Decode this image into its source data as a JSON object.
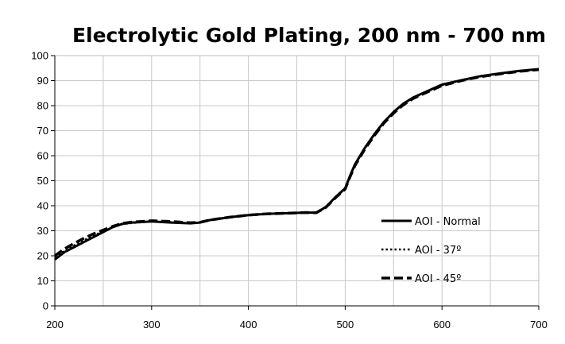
{
  "chart_data": {
    "type": "line",
    "title": "Electrolytic Gold Plating, 200 nm - 700 nm",
    "xlabel": "",
    "ylabel": "",
    "xlim": [
      200,
      700
    ],
    "ylim": [
      0,
      100
    ],
    "xticks": [
      200,
      300,
      400,
      500,
      600,
      700
    ],
    "yticks": [
      0,
      10,
      20,
      30,
      40,
      50,
      60,
      70,
      80,
      90,
      100
    ],
    "grid": true,
    "legend_position": "right",
    "series": [
      {
        "name": "AOI - Normal",
        "style": "solid",
        "color": "#000000",
        "x": [
          200,
          210,
          220,
          230,
          240,
          250,
          260,
          270,
          280,
          300,
          320,
          340,
          350,
          360,
          380,
          400,
          420,
          440,
          460,
          470,
          480,
          490,
          500,
          505,
          510,
          520,
          530,
          540,
          550,
          560,
          570,
          580,
          600,
          620,
          640,
          660,
          680,
          700
        ],
        "y": [
          18.5,
          21.5,
          23.5,
          25.5,
          27.5,
          29.5,
          31.5,
          32.8,
          33.3,
          33.7,
          33.3,
          33.0,
          33.3,
          34.3,
          35.4,
          36.3,
          36.8,
          37.0,
          37.3,
          37.2,
          39.5,
          43.5,
          47.0,
          52.0,
          56.5,
          63.0,
          68.5,
          73.5,
          77.5,
          80.8,
          83.2,
          85.0,
          88.4,
          90.2,
          91.8,
          92.9,
          93.9,
          94.6
        ]
      },
      {
        "name": "AOI - 37º",
        "style": "dotted",
        "color": "#000000",
        "x": [
          200,
          210,
          220,
          230,
          240,
          250,
          260,
          270,
          280,
          300,
          320,
          340,
          350,
          360,
          380,
          400,
          420,
          440,
          460,
          470,
          480,
          490,
          500,
          505,
          510,
          520,
          530,
          540,
          550,
          560,
          570,
          580,
          600,
          620,
          640,
          660,
          680,
          700
        ],
        "y": [
          19.5,
          22.0,
          24.2,
          26.2,
          28.0,
          29.8,
          31.5,
          32.7,
          33.1,
          33.8,
          33.5,
          33.1,
          33.3,
          34.2,
          35.3,
          36.2,
          36.8,
          37.0,
          37.3,
          37.2,
          39.4,
          43.3,
          46.8,
          51.8,
          56.3,
          62.8,
          68.3,
          73.3,
          77.3,
          80.6,
          83.0,
          84.8,
          88.2,
          90.1,
          91.7,
          92.8,
          93.8,
          94.5
        ]
      },
      {
        "name": "AOI - 45º",
        "style": "dashed",
        "color": "#000000",
        "x": [
          200,
          210,
          220,
          230,
          240,
          250,
          260,
          270,
          280,
          300,
          320,
          340,
          350,
          360,
          380,
          400,
          420,
          440,
          460,
          470,
          480,
          490,
          500,
          505,
          510,
          520,
          530,
          540,
          550,
          560,
          570,
          580,
          600,
          620,
          640,
          660,
          680,
          700
        ],
        "y": [
          20.0,
          22.8,
          25.0,
          27.0,
          28.8,
          30.3,
          31.8,
          33.0,
          33.5,
          34.0,
          33.7,
          33.2,
          33.4,
          34.3,
          35.4,
          36.3,
          36.8,
          37.0,
          37.3,
          37.2,
          39.3,
          43.2,
          46.7,
          51.6,
          56.0,
          62.5,
          68.0,
          73.0,
          77.0,
          80.3,
          82.8,
          84.6,
          88.0,
          90.0,
          91.6,
          92.7,
          93.7,
          94.4
        ]
      }
    ]
  }
}
